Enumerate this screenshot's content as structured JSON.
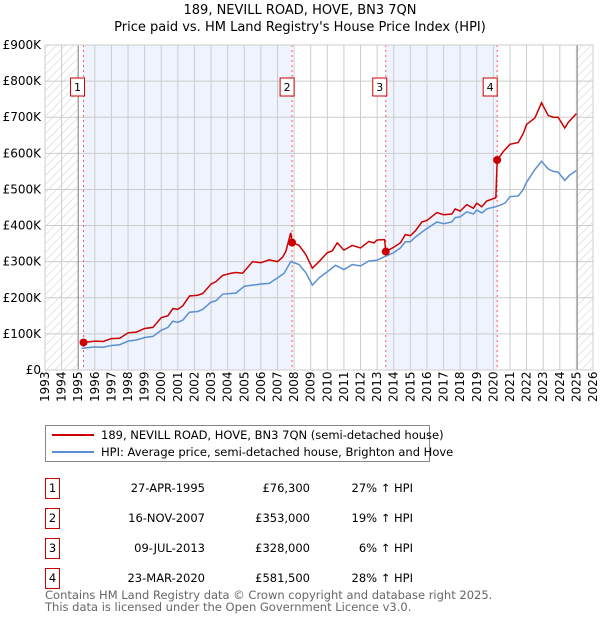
{
  "chart_data": {
    "type": "line",
    "title": "189, NEVILL ROAD, HOVE, BN3 7QN",
    "subtitle": "Price paid vs. HM Land Registry's House Price Index (HPI)",
    "xlim": [
      1993,
      2026
    ],
    "ylim": [
      0,
      900000
    ],
    "x_ticks": [
      "1993",
      "1994",
      "1995",
      "1996",
      "1997",
      "1998",
      "1999",
      "2000",
      "2001",
      "2002",
      "2003",
      "2004",
      "2005",
      "2006",
      "2007",
      "2008",
      "2009",
      "2010",
      "2011",
      "2012",
      "2013",
      "2014",
      "2015",
      "2016",
      "2017",
      "2018",
      "2019",
      "2020",
      "2021",
      "2022",
      "2023",
      "2024",
      "2025",
      "2026"
    ],
    "y_ticks": [
      {
        "v": 0,
        "label": "£0"
      },
      {
        "v": 100000,
        "label": "£100K"
      },
      {
        "v": 200000,
        "label": "£200K"
      },
      {
        "v": 300000,
        "label": "£300K"
      },
      {
        "v": 400000,
        "label": "£400K"
      },
      {
        "v": 500000,
        "label": "£500K"
      },
      {
        "v": 600000,
        "label": "£600K"
      },
      {
        "v": 700000,
        "label": "£700K"
      },
      {
        "v": 800000,
        "label": "£800K"
      },
      {
        "v": 900000,
        "label": "£900K"
      }
    ],
    "grid": true,
    "colors": {
      "property": "#cc0000",
      "hpi": "#5b8fd4",
      "shade": "#eef3fd"
    },
    "series": [
      {
        "name": "189, NEVILL ROAD, HOVE, BN3 7QN (semi-detached house)",
        "points": [
          [
            1995.32,
            76
          ],
          [
            1996,
            80
          ],
          [
            1996.5,
            79
          ],
          [
            1997,
            87
          ],
          [
            1997.5,
            88
          ],
          [
            1998,
            103
          ],
          [
            1998.5,
            105
          ],
          [
            1999,
            115
          ],
          [
            1999.5,
            118
          ],
          [
            2000,
            145
          ],
          [
            2000.4,
            150
          ],
          [
            2000.7,
            170
          ],
          [
            2001,
            168
          ],
          [
            2001.3,
            178
          ],
          [
            2001.7,
            205
          ],
          [
            2002.2,
            207
          ],
          [
            2002.5,
            212
          ],
          [
            2003,
            238
          ],
          [
            2003.3,
            245
          ],
          [
            2003.7,
            262
          ],
          [
            2004.2,
            268
          ],
          [
            2004.5,
            270
          ],
          [
            2004.9,
            268
          ],
          [
            2005.5,
            300
          ],
          [
            2006,
            297
          ],
          [
            2006.5,
            305
          ],
          [
            2007,
            300
          ],
          [
            2007.3,
            312
          ],
          [
            2007.5,
            328
          ],
          [
            2007.8,
            380
          ],
          [
            2007.88,
            353
          ],
          [
            2008.3,
            345
          ],
          [
            2008.7,
            320
          ],
          [
            2009.1,
            282
          ],
          [
            2009.5,
            300
          ],
          [
            2010,
            325
          ],
          [
            2010.3,
            330
          ],
          [
            2010.6,
            352
          ],
          [
            2011,
            332
          ],
          [
            2011.5,
            345
          ],
          [
            2012,
            338
          ],
          [
            2012.5,
            356
          ],
          [
            2012.8,
            352
          ],
          [
            2013,
            360
          ],
          [
            2013.45,
            361
          ],
          [
            2013.52,
            328
          ],
          [
            2014,
            340
          ],
          [
            2014.4,
            352
          ],
          [
            2014.7,
            375
          ],
          [
            2015,
            372
          ],
          [
            2015.3,
            385
          ],
          [
            2015.7,
            410
          ],
          [
            2016,
            414
          ],
          [
            2016.6,
            436
          ],
          [
            2017,
            430
          ],
          [
            2017.5,
            432
          ],
          [
            2017.7,
            446
          ],
          [
            2018,
            440
          ],
          [
            2018.4,
            458
          ],
          [
            2018.8,
            448
          ],
          [
            2019,
            462
          ],
          [
            2019.3,
            452
          ],
          [
            2019.6,
            468
          ],
          [
            2020.15,
            477
          ],
          [
            2020.23,
            581.5
          ],
          [
            2020.6,
            605
          ],
          [
            2021,
            625
          ],
          [
            2021.5,
            630
          ],
          [
            2021.8,
            655
          ],
          [
            2022,
            680
          ],
          [
            2022.5,
            698
          ],
          [
            2022.9,
            740
          ],
          [
            2023.3,
            705
          ],
          [
            2023.6,
            700
          ],
          [
            2023.9,
            700
          ],
          [
            2024.3,
            670
          ],
          [
            2024.5,
            685
          ],
          [
            2025,
            710
          ]
        ]
      },
      {
        "name": "HPI: Average price, semi-detached house, Brighton and Hove",
        "points": [
          [
            1995.2,
            60
          ],
          [
            1996,
            64
          ],
          [
            1996.5,
            63
          ],
          [
            1997,
            68
          ],
          [
            1997.5,
            70
          ],
          [
            1998,
            80
          ],
          [
            1998.5,
            83
          ],
          [
            1999,
            90
          ],
          [
            1999.5,
            93
          ],
          [
            2000,
            110
          ],
          [
            2000.4,
            118
          ],
          [
            2000.7,
            135
          ],
          [
            2001,
            132
          ],
          [
            2001.3,
            138
          ],
          [
            2001.7,
            160
          ],
          [
            2002.2,
            162
          ],
          [
            2002.5,
            168
          ],
          [
            2003,
            188
          ],
          [
            2003.3,
            192
          ],
          [
            2003.7,
            210
          ],
          [
            2004.2,
            212
          ],
          [
            2004.5,
            213
          ],
          [
            2005,
            232
          ],
          [
            2005.5,
            235
          ],
          [
            2006,
            238
          ],
          [
            2006.5,
            240
          ],
          [
            2007,
            255
          ],
          [
            2007.4,
            268
          ],
          [
            2007.8,
            300
          ],
          [
            2008.3,
            292
          ],
          [
            2008.7,
            270
          ],
          [
            2009.1,
            235
          ],
          [
            2009.5,
            255
          ],
          [
            2010,
            272
          ],
          [
            2010.5,
            290
          ],
          [
            2011,
            278
          ],
          [
            2011.5,
            292
          ],
          [
            2012,
            288
          ],
          [
            2012.5,
            302
          ],
          [
            2013,
            304
          ],
          [
            2013.5,
            315
          ],
          [
            2014,
            325
          ],
          [
            2014.4,
            338
          ],
          [
            2014.7,
            355
          ],
          [
            2015,
            355
          ],
          [
            2015.3,
            368
          ],
          [
            2015.7,
            382
          ],
          [
            2016,
            392
          ],
          [
            2016.6,
            410
          ],
          [
            2017,
            405
          ],
          [
            2017.5,
            410
          ],
          [
            2017.7,
            422
          ],
          [
            2018,
            424
          ],
          [
            2018.4,
            438
          ],
          [
            2018.8,
            432
          ],
          [
            2019,
            443
          ],
          [
            2019.3,
            435
          ],
          [
            2019.6,
            446
          ],
          [
            2020.2,
            453
          ],
          [
            2020.7,
            462
          ],
          [
            2021,
            480
          ],
          [
            2021.5,
            482
          ],
          [
            2021.8,
            500
          ],
          [
            2022,
            520
          ],
          [
            2022.5,
            555
          ],
          [
            2022.9,
            578
          ],
          [
            2023.3,
            557
          ],
          [
            2023.6,
            550
          ],
          [
            2023.9,
            548
          ],
          [
            2024.3,
            525
          ],
          [
            2024.6,
            540
          ],
          [
            2025,
            552
          ]
        ]
      }
    ],
    "sales": [
      {
        "n": "1",
        "x": 2007.88,
        "x0": 1995.32,
        "value": 76300,
        "date": "27-APR-1995",
        "price": "£76,300",
        "hpi": "27% ↑ HPI"
      },
      {
        "n": "2",
        "x": 2007.88,
        "value": 353000,
        "date": "16-NOV-2007",
        "price": "£353,000",
        "hpi": "19% ↑ HPI"
      },
      {
        "n": "3",
        "x": 2013.52,
        "value": 328000,
        "date": "09-JUL-2013",
        "price": "£328,000",
        "hpi": "6% ↑ HPI"
      },
      {
        "n": "4",
        "x": 2020.23,
        "value": 581500,
        "date": "23-MAR-2020",
        "price": "£581,500",
        "hpi": "28% ↑ HPI"
      }
    ]
  },
  "legend": {
    "property": "189, NEVILL ROAD, HOVE, BN3 7QN (semi-detached house)",
    "hpi": "HPI: Average price, semi-detached house, Brighton and Hove"
  },
  "footer": {
    "line1": "Contains HM Land Registry data © Crown copyright and database right 2025.",
    "line2": "This data is licensed under the Open Government Licence v3.0."
  }
}
